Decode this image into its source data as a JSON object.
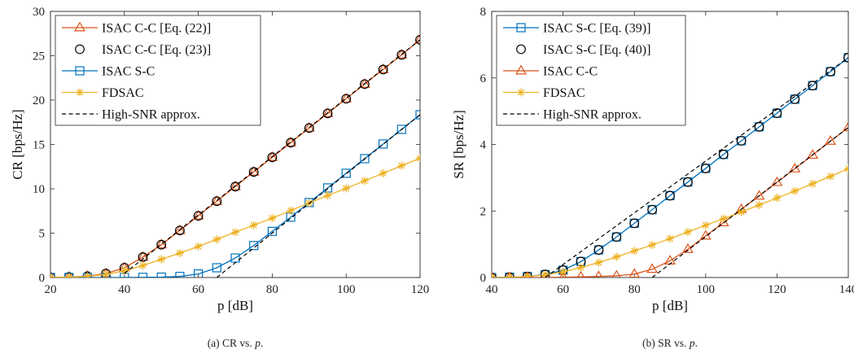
{
  "chart_data": [
    {
      "type": "line",
      "caption": {
        "prefix": "(a)  CR vs. ",
        "var": "p",
        "suffix": "."
      },
      "xlabel": "p [dB]",
      "ylabel": "CR [bps/Hz]",
      "xlim": [
        20,
        120
      ],
      "ylim": [
        0,
        30
      ],
      "xticks": [
        20,
        40,
        60,
        80,
        100,
        120
      ],
      "yticks": [
        0,
        5,
        10,
        15,
        20,
        25,
        30
      ],
      "legend_position": "top-left",
      "series": [
        {
          "name": "ISAC C-C [Eq. (22)]",
          "color": "#D95319",
          "marker": "triangle",
          "line": "solid",
          "x": [
            20,
            25,
            30,
            35,
            40,
            45,
            50,
            55,
            60,
            65,
            70,
            75,
            80,
            85,
            90,
            95,
            100,
            105,
            110,
            115,
            120
          ],
          "y": [
            0.02,
            0.05,
            0.15,
            0.45,
            1.1,
            2.3,
            3.7,
            5.3,
            6.95,
            8.6,
            10.25,
            11.9,
            13.55,
            15.2,
            16.85,
            18.5,
            20.15,
            21.8,
            23.45,
            25.1,
            26.8
          ]
        },
        {
          "name": "ISAC C-C [Eq. (23)]",
          "color": "#000000",
          "marker": "circle",
          "line": "none",
          "x": [
            20,
            25,
            30,
            35,
            40,
            45,
            50,
            55,
            60,
            65,
            70,
            75,
            80,
            85,
            90,
            95,
            100,
            105,
            110,
            115,
            120
          ],
          "y": [
            0.02,
            0.05,
            0.15,
            0.45,
            1.1,
            2.3,
            3.7,
            5.3,
            6.95,
            8.6,
            10.25,
            11.9,
            13.55,
            15.2,
            16.85,
            18.5,
            20.15,
            21.8,
            23.45,
            25.1,
            26.8
          ]
        },
        {
          "name": "ISAC S-C",
          "color": "#0072BD",
          "marker": "square",
          "line": "solid",
          "x": [
            20,
            25,
            30,
            35,
            40,
            45,
            50,
            55,
            60,
            65,
            70,
            75,
            80,
            85,
            90,
            95,
            100,
            105,
            110,
            115,
            120
          ],
          "y": [
            0,
            0,
            0,
            0,
            0.01,
            0.02,
            0.04,
            0.12,
            0.4,
            1.1,
            2.2,
            3.6,
            5.2,
            6.8,
            8.45,
            10.1,
            11.75,
            13.4,
            15.05,
            16.7,
            18.35
          ]
        },
        {
          "name": "FDSAC",
          "color": "#EDB120",
          "marker": "asterisk",
          "line": "solid",
          "x": [
            20,
            25,
            30,
            35,
            40,
            45,
            50,
            55,
            60,
            65,
            70,
            75,
            80,
            85,
            90,
            95,
            100,
            105,
            110,
            115,
            120
          ],
          "y": [
            0.01,
            0.04,
            0.12,
            0.35,
            0.75,
            1.35,
            2.05,
            2.75,
            3.5,
            4.3,
            5.1,
            5.9,
            6.7,
            7.55,
            8.4,
            9.25,
            10.05,
            10.9,
            11.75,
            12.6,
            13.45
          ]
        },
        {
          "name": "High-SNR approx.",
          "color": "#000000",
          "marker": "none",
          "line": "dashed",
          "segments": [
            {
              "x": [
                40,
                120
              ],
              "y": [
                0.45,
                26.8
              ]
            },
            {
              "x": [
                65,
                120
              ],
              "y": [
                0,
                18.35
              ]
            }
          ]
        }
      ]
    },
    {
      "type": "line",
      "caption": {
        "prefix": "(b)  SR vs. ",
        "var": "p",
        "suffix": "."
      },
      "xlabel": "p [dB]",
      "ylabel": "SR [bps/Hz]",
      "xlim": [
        40,
        140
      ],
      "ylim": [
        0,
        8
      ],
      "xticks": [
        40,
        60,
        80,
        100,
        120,
        140
      ],
      "yticks": [
        0,
        2,
        4,
        6,
        8
      ],
      "legend_position": "top-left",
      "series": [
        {
          "name": "ISAC S-C [Eq. (39)]",
          "color": "#0072BD",
          "marker": "square",
          "line": "solid",
          "x": [
            40,
            45,
            50,
            55,
            60,
            65,
            70,
            75,
            80,
            85,
            90,
            95,
            100,
            105,
            110,
            115,
            120,
            125,
            130,
            135,
            140
          ],
          "y": [
            0,
            0.01,
            0.03,
            0.09,
            0.22,
            0.48,
            0.83,
            1.22,
            1.63,
            2.04,
            2.46,
            2.87,
            3.28,
            3.7,
            4.11,
            4.53,
            4.94,
            5.36,
            5.77,
            6.19,
            6.61
          ]
        },
        {
          "name": "ISAC S-C [Eq. (40)]",
          "color": "#000000",
          "marker": "circle",
          "line": "none",
          "x": [
            40,
            45,
            50,
            55,
            60,
            65,
            70,
            75,
            80,
            85,
            90,
            95,
            100,
            105,
            110,
            115,
            120,
            125,
            130,
            135,
            140
          ],
          "y": [
            0,
            0.01,
            0.03,
            0.09,
            0.22,
            0.48,
            0.83,
            1.22,
            1.63,
            2.04,
            2.46,
            2.87,
            3.28,
            3.7,
            4.11,
            4.53,
            4.94,
            5.36,
            5.77,
            6.19,
            6.61
          ]
        },
        {
          "name": "ISAC C-C",
          "color": "#D95319",
          "marker": "triangle",
          "line": "solid",
          "x": [
            40,
            45,
            50,
            55,
            60,
            65,
            70,
            75,
            80,
            85,
            90,
            95,
            100,
            105,
            110,
            115,
            120,
            125,
            130,
            135,
            140
          ],
          "y": [
            0,
            0,
            0,
            0,
            0.01,
            0.02,
            0.03,
            0.05,
            0.1,
            0.25,
            0.5,
            0.85,
            1.25,
            1.65,
            2.05,
            2.45,
            2.86,
            3.27,
            3.68,
            4.1,
            4.51
          ]
        },
        {
          "name": "FDSAC",
          "color": "#EDB120",
          "marker": "asterisk",
          "line": "solid",
          "x": [
            40,
            45,
            50,
            55,
            60,
            65,
            70,
            75,
            80,
            85,
            90,
            95,
            100,
            105,
            110,
            115,
            120,
            125,
            130,
            135,
            140
          ],
          "y": [
            0,
            0.01,
            0.03,
            0.08,
            0.17,
            0.3,
            0.45,
            0.62,
            0.8,
            0.98,
            1.17,
            1.37,
            1.57,
            1.77,
            1.97,
            2.18,
            2.39,
            2.6,
            2.82,
            3.04,
            3.27
          ]
        },
        {
          "name": "High-SNR approx.",
          "color": "#000000",
          "marker": "none",
          "line": "dashed",
          "segments": [
            {
              "x": [
                55,
                140
              ],
              "y": [
                0,
                6.61
              ]
            },
            {
              "x": [
                85,
                140
              ],
              "y": [
                0,
                4.51
              ]
            }
          ]
        }
      ]
    }
  ]
}
